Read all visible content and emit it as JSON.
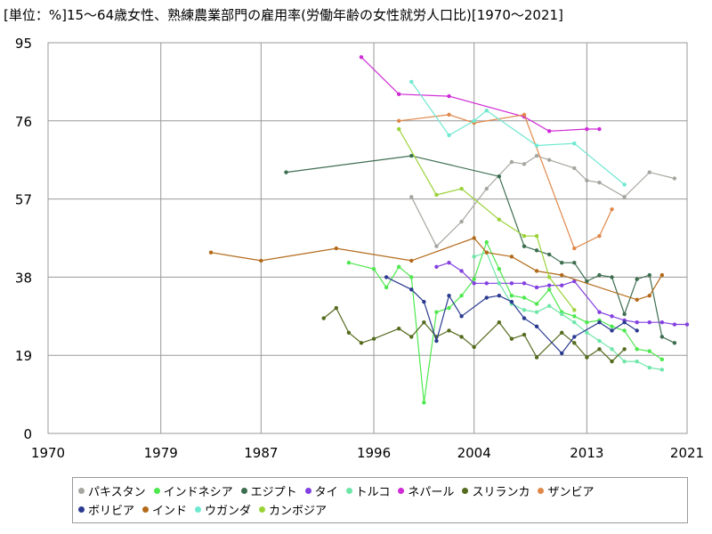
{
  "chart_data": {
    "type": "line",
    "title": "[単位：%]15～64歳女性、熟練農業部門の雇用率(労働年齢の女性就労人口比)[1970～2021]",
    "xlim": [
      1970,
      2021
    ],
    "ylim": [
      0,
      95
    ],
    "xticks": [
      1970,
      1979,
      1987,
      1996,
      2004,
      2013,
      2021
    ],
    "yticks": [
      0,
      19,
      38,
      57,
      76,
      95
    ],
    "grid": true,
    "legend_position": "bottom",
    "series": [
      {
        "name": "パキスタン",
        "color": "#a6a6a0",
        "points": [
          [
            1999,
            57.5
          ],
          [
            2001,
            45.5
          ],
          [
            2003,
            51.5
          ],
          [
            2005,
            59.5
          ],
          [
            2007,
            66
          ],
          [
            2008,
            65.5
          ],
          [
            2009,
            67.5
          ],
          [
            2010,
            66.5
          ],
          [
            2012,
            64.5
          ],
          [
            2013,
            61.5
          ],
          [
            2014,
            61
          ],
          [
            2016,
            57.5
          ],
          [
            2018,
            63.5
          ],
          [
            2020,
            62
          ]
        ]
      },
      {
        "name": "インドネシア",
        "color": "#4ee84e",
        "points": [
          [
            1994,
            41.5
          ],
          [
            1996,
            40
          ],
          [
            1997,
            35.5
          ],
          [
            1998,
            40.5
          ],
          [
            1999,
            38
          ],
          [
            2000,
            7.5
          ],
          [
            2001,
            29.5
          ],
          [
            2002,
            30.5
          ],
          [
            2003,
            33.5
          ],
          [
            2004,
            37.5
          ],
          [
            2005,
            46.5
          ],
          [
            2006,
            40
          ],
          [
            2007,
            33.5
          ],
          [
            2008,
            33
          ],
          [
            2009,
            31.5
          ],
          [
            2010,
            35
          ],
          [
            2011,
            29.5
          ],
          [
            2012,
            28.5
          ],
          [
            2013,
            27
          ],
          [
            2014,
            27.5
          ],
          [
            2015,
            26
          ],
          [
            2016,
            25
          ],
          [
            2017,
            20.5
          ],
          [
            2018,
            20
          ],
          [
            2019,
            18
          ]
        ]
      },
      {
        "name": "エジプト",
        "color": "#3d6e50",
        "points": [
          [
            1989,
            63.5
          ],
          [
            1999,
            67.5
          ],
          [
            2006,
            62.5
          ],
          [
            2008,
            45.5
          ],
          [
            2009,
            44.5
          ],
          [
            2010,
            43.5
          ],
          [
            2011,
            41.5
          ],
          [
            2012,
            41.5
          ],
          [
            2013,
            37
          ],
          [
            2014,
            38.5
          ],
          [
            2015,
            38
          ],
          [
            2016,
            29
          ],
          [
            2017,
            37.5
          ],
          [
            2018,
            38.5
          ],
          [
            2019,
            23.5
          ],
          [
            2020,
            22
          ]
        ]
      },
      {
        "name": "タイ",
        "color": "#8340e0",
        "points": [
          [
            2001,
            40.5
          ],
          [
            2002,
            41.5
          ],
          [
            2003,
            39.5
          ],
          [
            2004,
            36.5
          ],
          [
            2005,
            36.5
          ],
          [
            2006,
            36.5
          ],
          [
            2007,
            36.5
          ],
          [
            2008,
            36.5
          ],
          [
            2009,
            35.5
          ],
          [
            2010,
            36
          ],
          [
            2011,
            36
          ],
          [
            2012,
            37
          ],
          [
            2014,
            29.5
          ],
          [
            2015,
            28.5
          ],
          [
            2016,
            27.5
          ],
          [
            2017,
            27
          ],
          [
            2018,
            27
          ],
          [
            2019,
            27
          ],
          [
            2020,
            26.5
          ],
          [
            2021,
            26.5
          ]
        ]
      },
      {
        "name": "トルコ",
        "color": "#6ee6a8",
        "points": [
          [
            2004,
            43
          ],
          [
            2005,
            44
          ],
          [
            2006,
            36.5
          ],
          [
            2007,
            31.5
          ],
          [
            2008,
            30
          ],
          [
            2009,
            29.5
          ],
          [
            2010,
            31
          ],
          [
            2011,
            29
          ],
          [
            2012,
            27
          ],
          [
            2013,
            24.5
          ],
          [
            2014,
            22.5
          ],
          [
            2015,
            20.5
          ],
          [
            2016,
            17.5
          ],
          [
            2017,
            17.5
          ],
          [
            2018,
            16
          ],
          [
            2019,
            15.5
          ]
        ]
      },
      {
        "name": "ネパール",
        "color": "#cf2bd6",
        "points": [
          [
            1995,
            91.5
          ],
          [
            1998,
            82.5
          ],
          [
            2002,
            82
          ],
          [
            2008,
            77
          ],
          [
            2010,
            73.5
          ],
          [
            2013,
            74
          ],
          [
            2014,
            74
          ]
        ]
      },
      {
        "name": "スリランカ",
        "color": "#556b1e",
        "points": [
          [
            1992,
            28
          ],
          [
            1993,
            30.5
          ],
          [
            1994,
            24.5
          ],
          [
            1995,
            22
          ],
          [
            1996,
            23
          ],
          [
            1998,
            25.5
          ],
          [
            1999,
            23.5
          ],
          [
            2000,
            27
          ],
          [
            2001,
            23.5
          ],
          [
            2002,
            25
          ],
          [
            2003,
            23.5
          ],
          [
            2004,
            21
          ],
          [
            2006,
            27
          ],
          [
            2007,
            23
          ],
          [
            2008,
            24
          ],
          [
            2009,
            18.5
          ],
          [
            2011,
            24.5
          ],
          [
            2012,
            22
          ],
          [
            2013,
            18.5
          ],
          [
            2014,
            20.5
          ],
          [
            2015,
            17.5
          ],
          [
            2016,
            20.5
          ]
        ]
      },
      {
        "name": "ザンビア",
        "color": "#e0884a",
        "points": [
          [
            1998,
            76
          ],
          [
            2002,
            77.5
          ],
          [
            2004,
            75.5
          ],
          [
            2008,
            77.5
          ],
          [
            2012,
            45
          ],
          [
            2014,
            48
          ],
          [
            2015,
            54.5
          ]
        ]
      },
      {
        "name": "ボリビア",
        "color": "#2a3a90",
        "points": [
          [
            1997,
            38
          ],
          [
            1999,
            35
          ],
          [
            2000,
            32
          ],
          [
            2001,
            22.5
          ],
          [
            2002,
            33.5
          ],
          [
            2003,
            28.5
          ],
          [
            2005,
            33
          ],
          [
            2006,
            33.5
          ],
          [
            2007,
            32
          ],
          [
            2008,
            28
          ],
          [
            2009,
            26
          ],
          [
            2011,
            19.5
          ],
          [
            2012,
            23.5
          ],
          [
            2014,
            27
          ],
          [
            2015,
            25
          ],
          [
            2016,
            27
          ],
          [
            2017,
            25
          ]
        ]
      },
      {
        "name": "インド",
        "color": "#b36a1a",
        "points": [
          [
            1983,
            44
          ],
          [
            1987,
            42
          ],
          [
            1993,
            45
          ],
          [
            1999,
            42
          ],
          [
            2004,
            47.5
          ],
          [
            2005,
            44
          ],
          [
            2007,
            43
          ],
          [
            2009,
            39.5
          ],
          [
            2011,
            38.5
          ],
          [
            2017,
            32.5
          ],
          [
            2018,
            33.5
          ],
          [
            2019,
            38.5
          ]
        ]
      },
      {
        "name": "ウガンダ",
        "color": "#6ee8d0",
        "points": [
          [
            1999,
            85.5
          ],
          [
            2002,
            72.5
          ],
          [
            2004,
            76
          ],
          [
            2005,
            78.5
          ],
          [
            2009,
            70
          ],
          [
            2012,
            70.5
          ],
          [
            2016,
            60.5
          ]
        ]
      },
      {
        "name": "カンボジア",
        "color": "#9ad238",
        "points": [
          [
            1998,
            74
          ],
          [
            2001,
            58
          ],
          [
            2003,
            59.5
          ],
          [
            2006,
            52
          ],
          [
            2008,
            48
          ],
          [
            2009,
            48
          ],
          [
            2010,
            38
          ],
          [
            2012,
            30
          ]
        ]
      }
    ]
  }
}
